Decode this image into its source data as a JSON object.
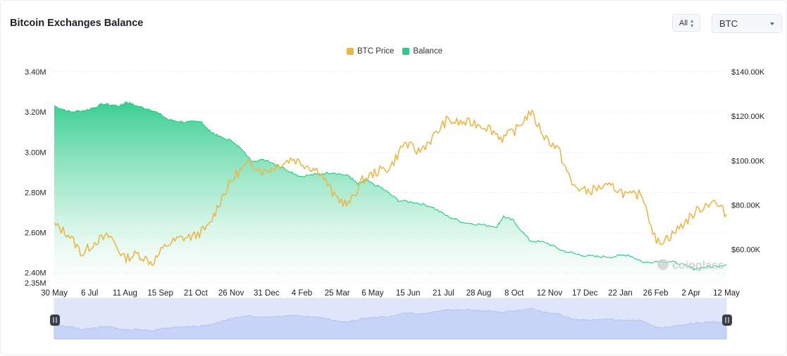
{
  "header": {
    "title": "Bitcoin Exchanges Balance",
    "range_value": "All",
    "coin_value": "BTC"
  },
  "legend": [
    {
      "label": "BTC Price",
      "color": "#e8b84b"
    },
    {
      "label": "Balance",
      "color": "#2ecb8a"
    }
  ],
  "watermark": "coinglass",
  "chart_data": {
    "type": "area",
    "title": "Bitcoin Exchanges Balance",
    "x_tick_labels": [
      "30 May",
      "6 Jul",
      "11 Aug",
      "15 Sep",
      "21 Oct",
      "26 Nov",
      "31 Dec",
      "4 Feb",
      "25 Mar",
      "6 May",
      "15 Jun",
      "21 Jul",
      "28 Aug",
      "8 Oct",
      "12 Nov",
      "17 Dec",
      "22 Jan",
      "26 Feb",
      "2 Apr",
      "12 May"
    ],
    "y_left_ticks": [
      "3.40M",
      "3.20M",
      "3.00M",
      "2.80M",
      "2.60M",
      "2.40M",
      "2.35M"
    ],
    "y_right_ticks": [
      "$140.00K",
      "$120.00K",
      "$100.00K",
      "$80.00K",
      "$60.00K"
    ],
    "y_left_range": [
      2350000,
      3400000
    ],
    "y_right_range": [
      45000,
      140000
    ],
    "grid": true,
    "legend_position": "top-center",
    "series": [
      {
        "name": "Balance",
        "axis": "left",
        "color": "#2ecb8a",
        "type": "area",
        "points": [
          [
            0,
            3230000
          ],
          [
            1,
            3200000
          ],
          [
            2,
            3210000
          ],
          [
            3,
            3240000
          ],
          [
            4,
            3230000
          ],
          [
            4.4,
            3250000
          ],
          [
            5,
            3230000
          ],
          [
            6,
            3210000
          ],
          [
            7,
            3160000
          ],
          [
            8,
            3150000
          ],
          [
            9,
            3150000
          ],
          [
            9.4,
            3110000
          ],
          [
            10,
            3080000
          ],
          [
            11,
            3050000
          ],
          [
            12,
            2960000
          ],
          [
            13,
            2960000
          ],
          [
            14,
            2920000
          ],
          [
            15,
            2880000
          ],
          [
            16,
            2890000
          ],
          [
            17,
            2900000
          ],
          [
            18,
            2880000
          ],
          [
            18.5,
            2840000
          ],
          [
            19,
            2860000
          ],
          [
            20,
            2820000
          ],
          [
            21,
            2760000
          ],
          [
            22,
            2750000
          ],
          [
            23,
            2730000
          ],
          [
            24,
            2680000
          ],
          [
            25,
            2650000
          ],
          [
            26,
            2640000
          ],
          [
            27,
            2630000
          ],
          [
            27.4,
            2680000
          ],
          [
            28,
            2660000
          ],
          [
            29,
            2560000
          ],
          [
            30,
            2550000
          ],
          [
            31,
            2510000
          ],
          [
            32,
            2490000
          ],
          [
            33,
            2480000
          ],
          [
            34,
            2480000
          ],
          [
            35,
            2490000
          ],
          [
            36,
            2450000
          ],
          [
            37,
            2460000
          ],
          [
            38,
            2450000
          ],
          [
            39,
            2420000
          ],
          [
            40,
            2430000
          ],
          [
            41,
            2440000
          ]
        ]
      },
      {
        "name": "BTC Price",
        "axis": "right",
        "color": "#e8b84b",
        "type": "line",
        "points": [
          [
            0,
            71000
          ],
          [
            1,
            67000
          ],
          [
            2,
            58000
          ],
          [
            3,
            64000
          ],
          [
            4,
            66000
          ],
          [
            5,
            56000
          ],
          [
            6,
            58000
          ],
          [
            7,
            54000
          ],
          [
            8,
            62000
          ],
          [
            9,
            65000
          ],
          [
            10,
            66000
          ],
          [
            11,
            70000
          ],
          [
            12,
            84000
          ],
          [
            13,
            94000
          ],
          [
            14,
            99000
          ],
          [
            15,
            95000
          ],
          [
            16,
            98000
          ],
          [
            17,
            101000
          ],
          [
            18,
            98000
          ],
          [
            19,
            95000
          ],
          [
            20,
            84000
          ],
          [
            21,
            80000
          ],
          [
            22,
            91000
          ],
          [
            23,
            95000
          ],
          [
            24,
            97000
          ],
          [
            25,
            108000
          ],
          [
            26,
            104000
          ],
          [
            27,
            110000
          ],
          [
            28,
            118000
          ],
          [
            29,
            117000
          ],
          [
            30,
            117000
          ],
          [
            31,
            115000
          ],
          [
            32,
            110000
          ],
          [
            33,
            114000
          ],
          [
            34,
            122000
          ],
          [
            35,
            111000
          ],
          [
            36,
            105000
          ],
          [
            37,
            89000
          ],
          [
            38,
            86000
          ],
          [
            39,
            88000
          ],
          [
            40,
            88000
          ],
          [
            41,
            84000
          ],
          [
            42,
            85000
          ],
          [
            43,
            63000
          ],
          [
            44,
            66000
          ],
          [
            45,
            72000
          ],
          [
            46,
            78000
          ],
          [
            47,
            82000
          ],
          [
            48,
            76000
          ]
        ]
      }
    ]
  }
}
